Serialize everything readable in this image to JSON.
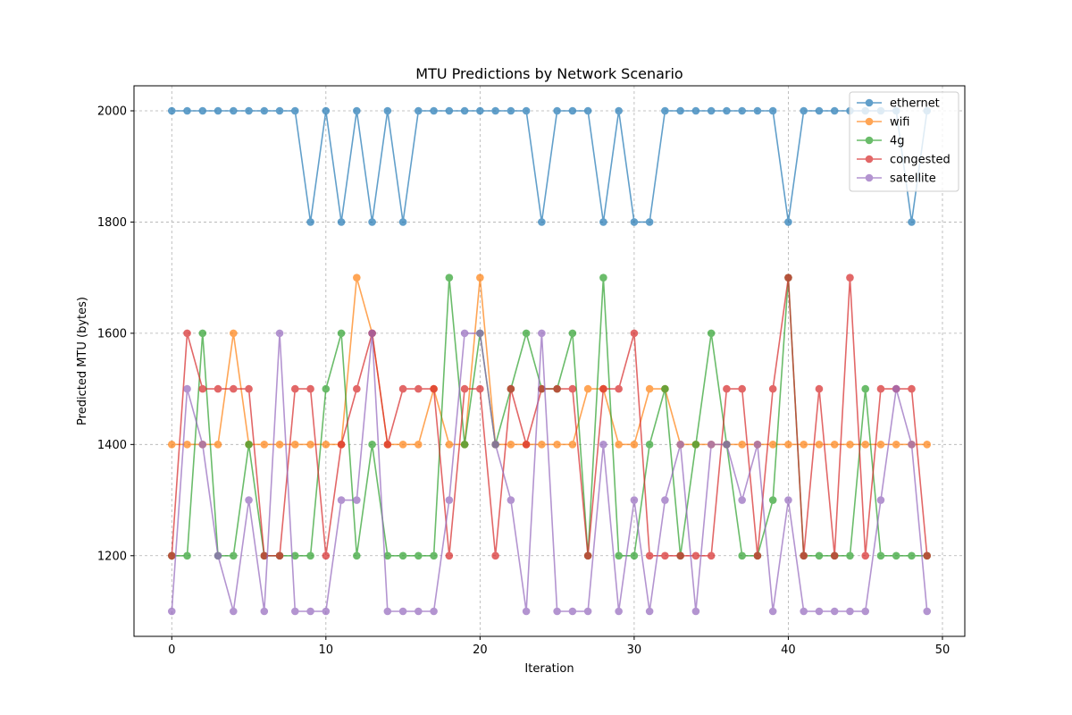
{
  "chart_data": {
    "type": "line",
    "title": "MTU Predictions by Network Scenario",
    "xlabel": "Iteration",
    "ylabel": "Predicted MTU (bytes)",
    "xlim": [
      -2.45,
      51.45
    ],
    "ylim": [
      1055,
      2045
    ],
    "xticks": [
      0,
      10,
      20,
      30,
      40,
      50
    ],
    "yticks": [
      1200,
      1400,
      1600,
      1800,
      2000
    ],
    "grid": true,
    "legend_position": "top-right",
    "x": [
      0,
      1,
      2,
      3,
      4,
      5,
      6,
      7,
      8,
      9,
      10,
      11,
      12,
      13,
      14,
      15,
      16,
      17,
      18,
      19,
      20,
      21,
      22,
      23,
      24,
      25,
      26,
      27,
      28,
      29,
      30,
      31,
      32,
      33,
      34,
      35,
      36,
      37,
      38,
      39,
      40,
      41,
      42,
      43,
      44,
      45,
      46,
      47,
      48,
      49
    ],
    "series": [
      {
        "name": "ethernet",
        "color": "#1f77b4",
        "values": [
          2000,
          2000,
          2000,
          2000,
          2000,
          2000,
          2000,
          2000,
          2000,
          1800,
          2000,
          1800,
          2000,
          1800,
          2000,
          1800,
          2000,
          2000,
          2000,
          2000,
          2000,
          2000,
          2000,
          2000,
          1800,
          2000,
          2000,
          2000,
          1800,
          2000,
          1800,
          1800,
          2000,
          2000,
          2000,
          2000,
          2000,
          2000,
          2000,
          2000,
          1800,
          2000,
          2000,
          2000,
          2000,
          2000,
          2000,
          2000,
          1800,
          2000
        ]
      },
      {
        "name": "wifi",
        "color": "#ff7f0e",
        "values": [
          1400,
          1400,
          1400,
          1400,
          1600,
          1400,
          1400,
          1400,
          1400,
          1400,
          1400,
          1400,
          1700,
          1600,
          1400,
          1400,
          1400,
          1500,
          1400,
          1400,
          1700,
          1400,
          1400,
          1400,
          1400,
          1400,
          1400,
          1500,
          1500,
          1400,
          1400,
          1500,
          1500,
          1400,
          1400,
          1400,
          1400,
          1400,
          1400,
          1400,
          1400,
          1400,
          1400,
          1400,
          1400,
          1400,
          1400,
          1400,
          1400,
          1400
        ]
      },
      {
        "name": "4g",
        "color": "#2ca02c",
        "values": [
          1200,
          1200,
          1600,
          1200,
          1200,
          1400,
          1200,
          1200,
          1200,
          1200,
          1500,
          1600,
          1200,
          1400,
          1200,
          1200,
          1200,
          1200,
          1700,
          1400,
          1600,
          1400,
          1500,
          1600,
          1500,
          1500,
          1600,
          1200,
          1700,
          1200,
          1200,
          1400,
          1500,
          1200,
          1400,
          1600,
          1400,
          1200,
          1200,
          1300,
          1700,
          1200,
          1200,
          1200,
          1200,
          1500,
          1200,
          1200,
          1200,
          1200
        ]
      },
      {
        "name": "congested",
        "color": "#d62728",
        "values": [
          1200,
          1600,
          1500,
          1500,
          1500,
          1500,
          1200,
          1200,
          1500,
          1500,
          1200,
          1400,
          1500,
          1600,
          1400,
          1500,
          1500,
          1500,
          1200,
          1500,
          1500,
          1200,
          1500,
          1400,
          1500,
          1500,
          1500,
          1200,
          1500,
          1500,
          1600,
          1200,
          1200,
          1200,
          1200,
          1200,
          1500,
          1500,
          1200,
          1500,
          1700,
          1200,
          1500,
          1200,
          1700,
          1200,
          1500,
          1500,
          1500,
          1200
        ]
      },
      {
        "name": "satellite",
        "color": "#9467bd",
        "values": [
          1100,
          1500,
          1400,
          1200,
          1100,
          1300,
          1100,
          1600,
          1100,
          1100,
          1100,
          1300,
          1300,
          1600,
          1100,
          1100,
          1100,
          1100,
          1300,
          1600,
          1600,
          1400,
          1300,
          1100,
          1600,
          1100,
          1100,
          1100,
          1400,
          1100,
          1300,
          1100,
          1300,
          1400,
          1100,
          1400,
          1400,
          1300,
          1400,
          1100,
          1300,
          1100,
          1100,
          1100,
          1100,
          1100,
          1300,
          1500,
          1400,
          1100
        ]
      }
    ]
  }
}
